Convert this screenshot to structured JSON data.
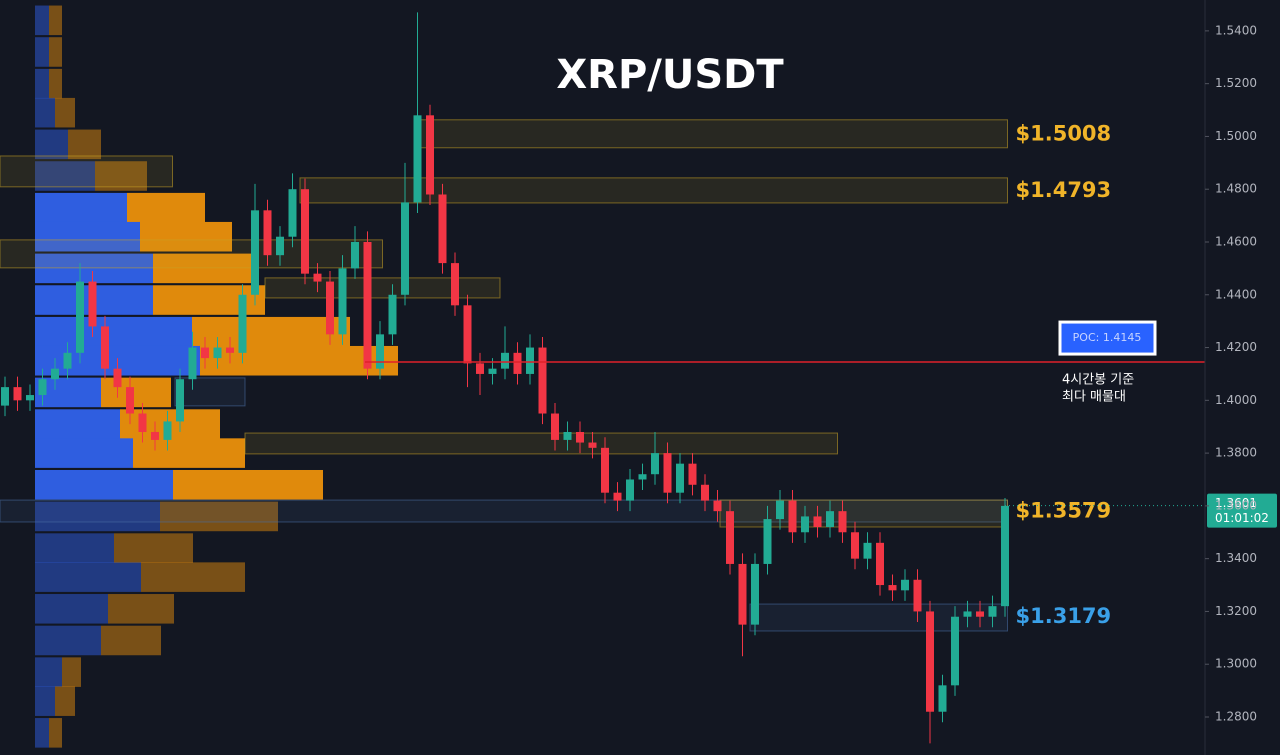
{
  "chart_data": {
    "type": "candlestick",
    "title": "XRP/USDT",
    "ylim": [
      1.2656,
      1.5517
    ],
    "yticks": [
      {
        "value": 1.28,
        "label": "1.2800"
      },
      {
        "value": 1.3,
        "label": "1.3000"
      },
      {
        "value": 1.32,
        "label": "1.3200"
      },
      {
        "value": 1.34,
        "label": "1.3400"
      },
      {
        "value": 1.36,
        "label": "1.3600"
      },
      {
        "value": 1.38,
        "label": "1.3800"
      },
      {
        "value": 1.4,
        "label": "1.4000"
      },
      {
        "value": 1.42,
        "label": "1.4200"
      },
      {
        "value": 1.44,
        "label": "1.4400"
      },
      {
        "value": 1.46,
        "label": "1.4600"
      },
      {
        "value": 1.48,
        "label": "1.4800"
      },
      {
        "value": 1.5,
        "label": "1.5000"
      },
      {
        "value": 1.52,
        "label": "1.5200"
      },
      {
        "value": 1.54,
        "label": "1.5400"
      }
    ],
    "up_color": "#22ab94",
    "down_color": "#f23645",
    "open": [
      1.398,
      1.405,
      1.4,
      1.402,
      1.408,
      1.412,
      1.418,
      1.445,
      1.428,
      1.412,
      1.405,
      1.395,
      1.388,
      1.385,
      1.392,
      1.408,
      1.42,
      1.416,
      1.42,
      1.418,
      1.44,
      1.472,
      1.455,
      1.462,
      1.48,
      1.448,
      1.445,
      1.425,
      1.45,
      1.46,
      1.412,
      1.425,
      1.44,
      1.475,
      1.508,
      1.478,
      1.452,
      1.436,
      1.414,
      1.41,
      1.412,
      1.418,
      1.41,
      1.42,
      1.395,
      1.385,
      1.388,
      1.384,
      1.382,
      1.365,
      1.362,
      1.37,
      1.372,
      1.38,
      1.365,
      1.376,
      1.368,
      1.362,
      1.358,
      1.338,
      1.315,
      1.338,
      1.355,
      1.362,
      1.35,
      1.356,
      1.352,
      1.358,
      1.35,
      1.34,
      1.346,
      1.33,
      1.328,
      1.332,
      1.32,
      1.282,
      1.292,
      1.318,
      1.32,
      1.318,
      1.322
    ],
    "high": [
      1.409,
      1.409,
      1.406,
      1.412,
      1.416,
      1.422,
      1.452,
      1.449,
      1.432,
      1.416,
      1.409,
      1.399,
      1.392,
      1.396,
      1.412,
      1.426,
      1.424,
      1.424,
      1.424,
      1.444,
      1.482,
      1.476,
      1.466,
      1.486,
      1.484,
      1.452,
      1.449,
      1.455,
      1.466,
      1.464,
      1.43,
      1.444,
      1.49,
      1.547,
      1.512,
      1.482,
      1.456,
      1.44,
      1.418,
      1.416,
      1.428,
      1.422,
      1.425,
      1.424,
      1.399,
      1.392,
      1.392,
      1.388,
      1.386,
      1.369,
      1.374,
      1.376,
      1.388,
      1.384,
      1.38,
      1.38,
      1.372,
      1.366,
      1.362,
      1.342,
      1.342,
      1.36,
      1.366,
      1.366,
      1.36,
      1.36,
      1.362,
      1.362,
      1.354,
      1.35,
      1.35,
      1.334,
      1.336,
      1.336,
      1.324,
      1.296,
      1.322,
      1.324,
      1.324,
      1.326,
      1.363
    ],
    "low": [
      1.394,
      1.396,
      1.396,
      1.398,
      1.404,
      1.408,
      1.414,
      1.424,
      1.408,
      1.401,
      1.391,
      1.384,
      1.381,
      1.381,
      1.388,
      1.404,
      1.412,
      1.412,
      1.414,
      1.414,
      1.436,
      1.451,
      1.451,
      1.458,
      1.444,
      1.441,
      1.421,
      1.421,
      1.446,
      1.408,
      1.408,
      1.421,
      1.436,
      1.471,
      1.474,
      1.448,
      1.432,
      1.405,
      1.402,
      1.406,
      1.408,
      1.406,
      1.406,
      1.391,
      1.381,
      1.381,
      1.38,
      1.378,
      1.361,
      1.358,
      1.358,
      1.366,
      1.368,
      1.361,
      1.361,
      1.364,
      1.358,
      1.354,
      1.334,
      1.303,
      1.311,
      1.334,
      1.351,
      1.346,
      1.346,
      1.348,
      1.348,
      1.346,
      1.336,
      1.336,
      1.326,
      1.324,
      1.324,
      1.316,
      1.27,
      1.278,
      1.288,
      1.314,
      1.314,
      1.314,
      1.318
    ],
    "close": [
      1.405,
      1.4,
      1.402,
      1.408,
      1.412,
      1.418,
      1.445,
      1.428,
      1.412,
      1.405,
      1.395,
      1.388,
      1.385,
      1.392,
      1.408,
      1.42,
      1.416,
      1.42,
      1.418,
      1.44,
      1.472,
      1.455,
      1.462,
      1.48,
      1.448,
      1.445,
      1.425,
      1.45,
      1.46,
      1.412,
      1.425,
      1.44,
      1.475,
      1.508,
      1.478,
      1.452,
      1.436,
      1.414,
      1.41,
      1.412,
      1.418,
      1.41,
      1.42,
      1.395,
      1.385,
      1.388,
      1.384,
      1.382,
      1.365,
      1.362,
      1.37,
      1.372,
      1.38,
      1.365,
      1.376,
      1.368,
      1.362,
      1.358,
      1.338,
      1.315,
      1.338,
      1.355,
      1.362,
      1.35,
      1.356,
      1.352,
      1.358,
      1.35,
      1.34,
      1.346,
      1.33,
      1.328,
      1.332,
      1.32,
      1.282,
      1.292,
      1.318,
      1.32,
      1.318,
      1.322,
      1.36
    ],
    "profile": {
      "prices": [
        1.544,
        1.532,
        1.52,
        1.509,
        1.497,
        1.485,
        1.473,
        1.462,
        1.45,
        1.438,
        1.426,
        1.415,
        1.403,
        1.391,
        1.38,
        1.368,
        1.356,
        1.344,
        1.333,
        1.321,
        1.309,
        1.297,
        1.286,
        1.274
      ],
      "buy": [
        14,
        14,
        14,
        20,
        33,
        60,
        92,
        105,
        118,
        118,
        157,
        165,
        66,
        85,
        98,
        138,
        125,
        79,
        106,
        73,
        66,
        27,
        20,
        14
      ],
      "sell": [
        13,
        13,
        13,
        20,
        33,
        52,
        78,
        92,
        100,
        112,
        158,
        198,
        70,
        100,
        112,
        150,
        118,
        79,
        104,
        66,
        60,
        19,
        20,
        13
      ],
      "buy_color": "#2f5ee0",
      "sell_color": "#e08a0c",
      "value_area": [
        1.362,
        1.48
      ]
    },
    "zones": [
      {
        "low": 1.4957,
        "high": 1.5063,
        "from": 33,
        "to": 80.2,
        "color": "#c9a227",
        "level": 1.5008,
        "label": "$1.5008"
      },
      {
        "low": 1.4748,
        "high": 1.4843,
        "from": 23.6,
        "to": 80.2,
        "color": "#c9a227",
        "level": 1.4793,
        "label": "$1.4793"
      },
      {
        "low": 1.4809,
        "high": 1.4926,
        "from": -0.4,
        "to": 13.4,
        "color": "#c9a227"
      },
      {
        "low": 1.4502,
        "high": 1.4608,
        "from": -0.4,
        "to": 30.2,
        "color": "#c9a227"
      },
      {
        "low": 1.4388,
        "high": 1.4464,
        "from": 20.8,
        "to": 39.6,
        "color": "#c9a227"
      },
      {
        "low": 1.3979,
        "high": 1.4085,
        "from": 13.6,
        "to": 19.2,
        "color": "#4a6fa5"
      },
      {
        "low": 1.3797,
        "high": 1.3876,
        "from": 19.2,
        "to": 66.6,
        "color": "#c9a227"
      },
      {
        "low": 1.3539,
        "high": 1.3622,
        "from": -0.4,
        "to": 80.2,
        "color": "#4a6fa5"
      },
      {
        "low": 1.352,
        "high": 1.3622,
        "from": 57.2,
        "to": 80.2,
        "color": "#c9a227",
        "level": 1.3579,
        "label": "$1.3579"
      },
      {
        "low": 1.3126,
        "high": 1.3228,
        "from": 59.6,
        "to": 80.2,
        "color": "#4a6fa5",
        "level": 1.3179,
        "label": "$1.3179",
        "label_color": "#3aa0e8"
      }
    ],
    "poc": {
      "value": 1.4145,
      "label": "POC: 1.4145",
      "note": [
        "4시간봉 기준",
        "최다 매물대"
      ],
      "from": 28.8,
      "color": "#e0202a"
    },
    "last_price": {
      "value": 1.3601,
      "countdown": "01:01:02"
    }
  }
}
